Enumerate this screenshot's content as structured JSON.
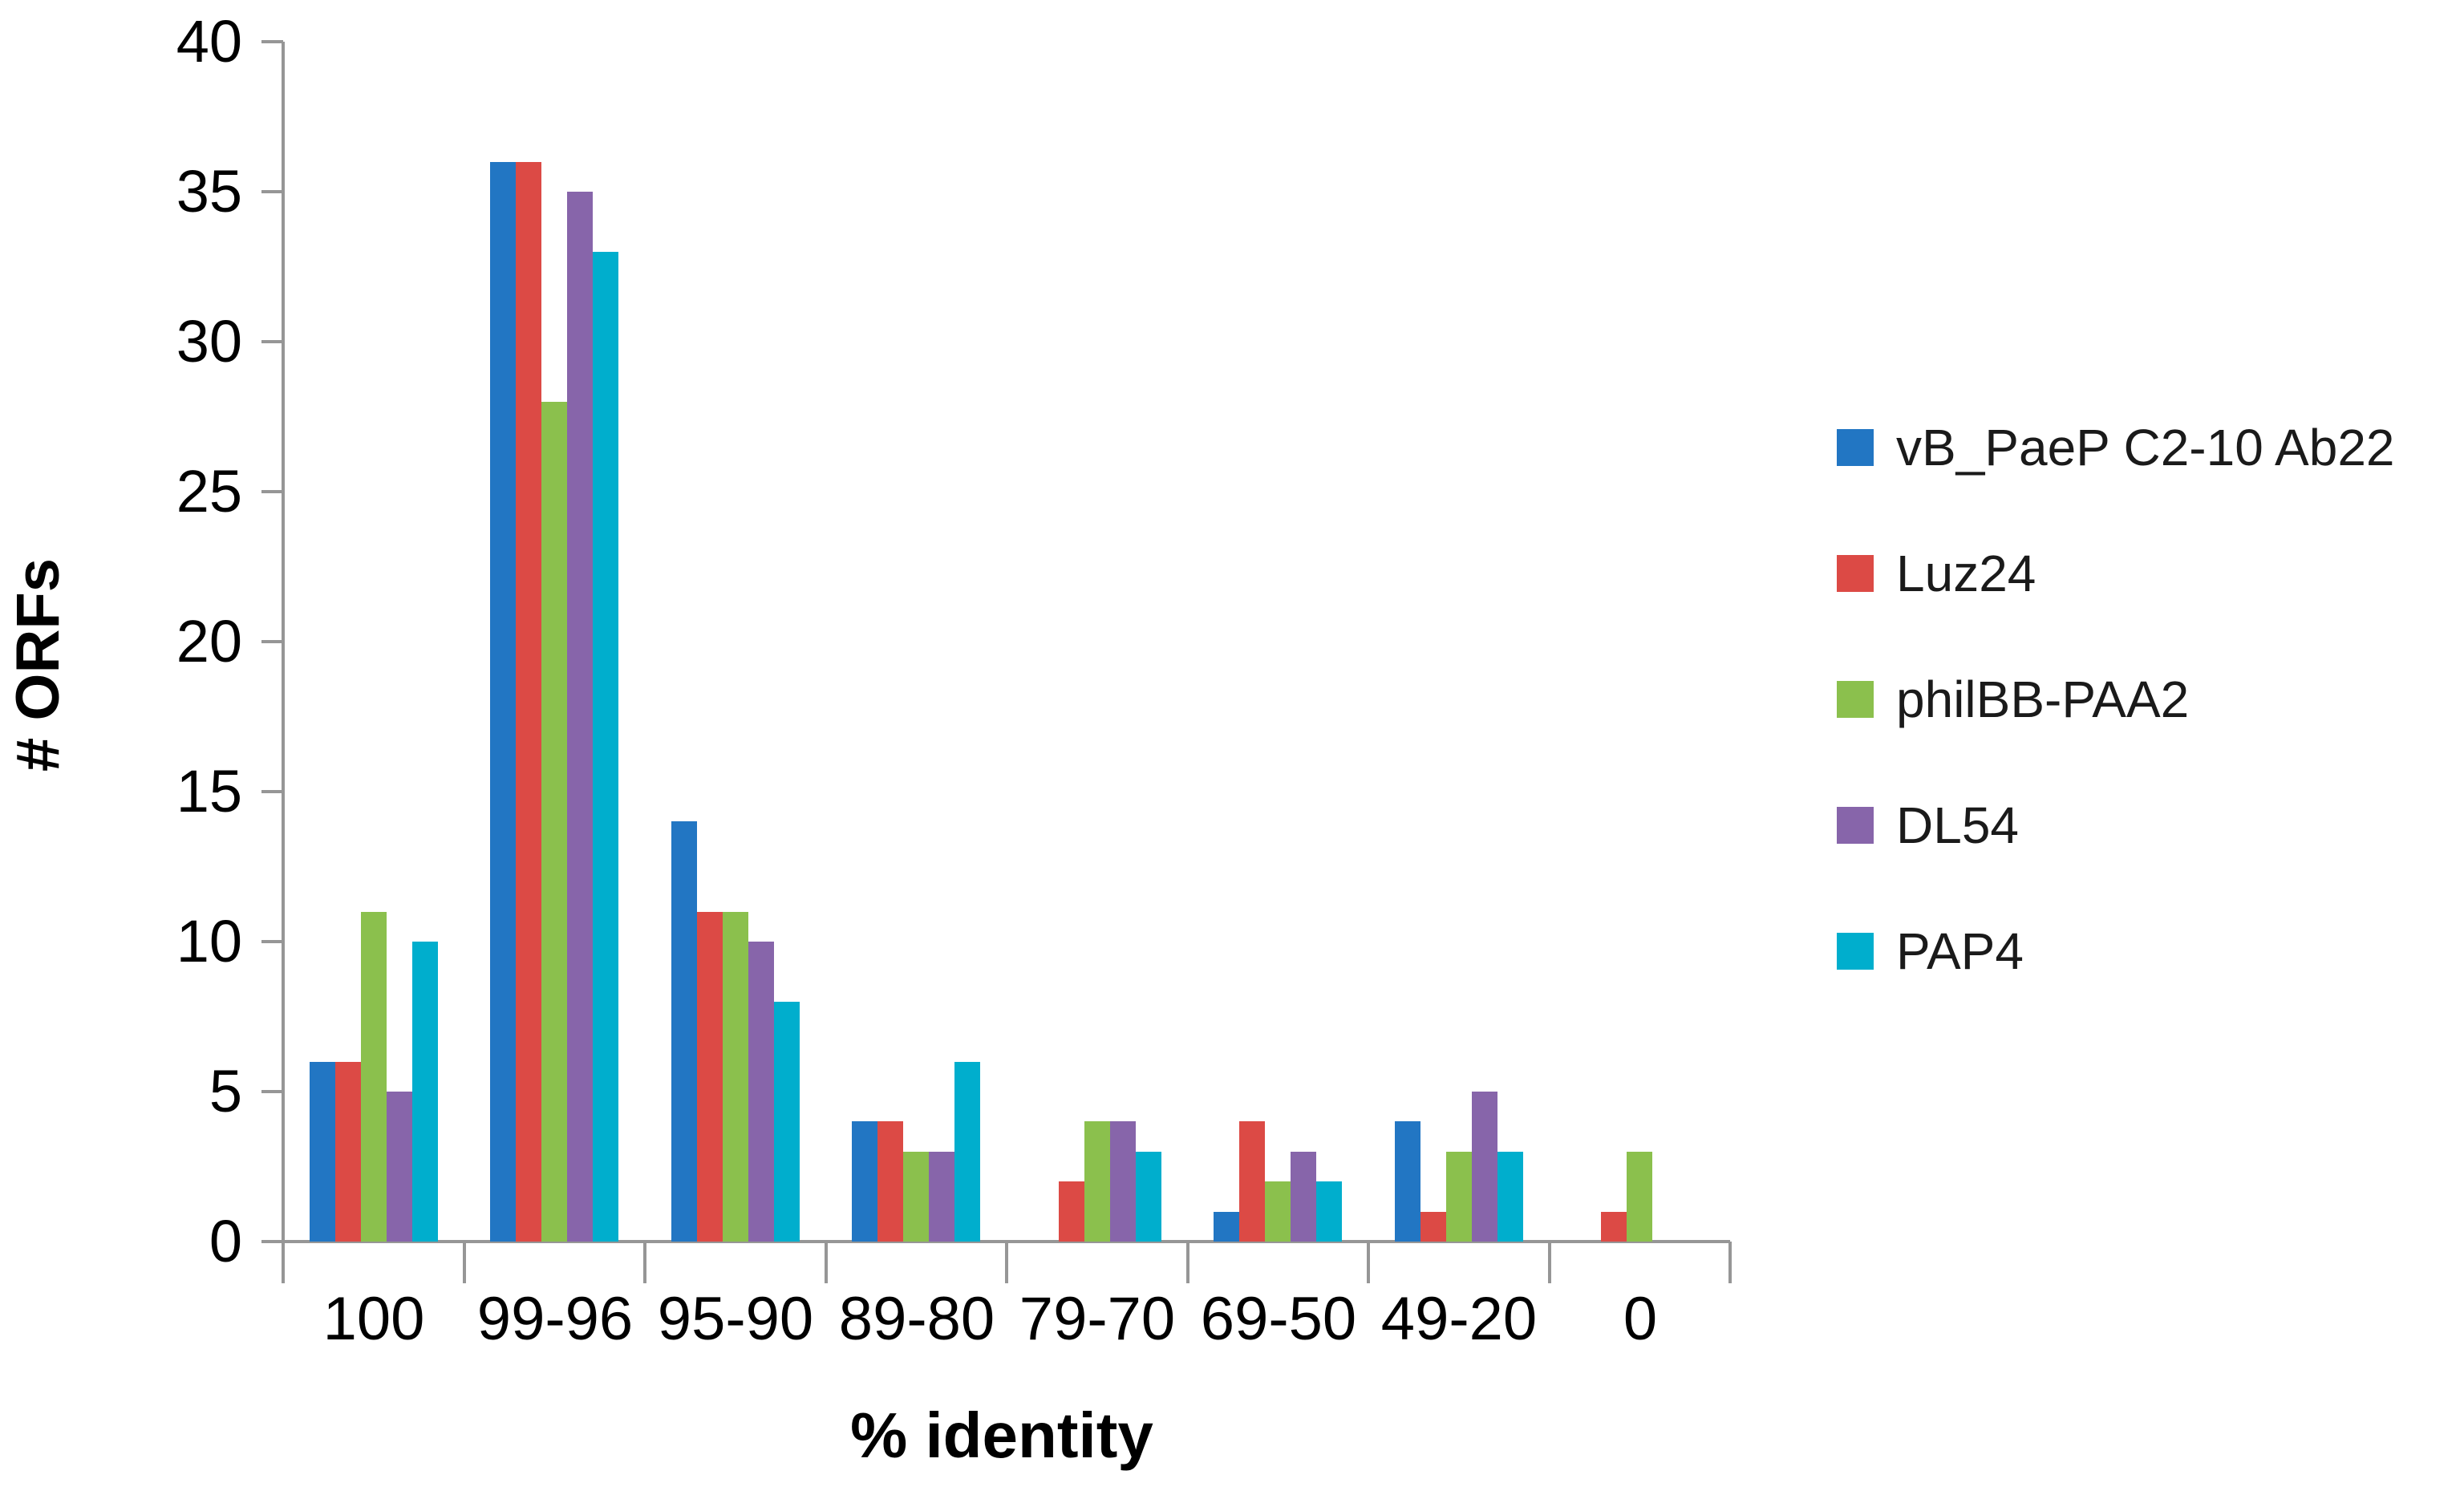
{
  "chart_data": {
    "type": "bar",
    "title": "",
    "xlabel": "% identity",
    "ylabel": "# ORFs",
    "categories": [
      "100",
      "99-96",
      "95-90",
      "89-80",
      "79-70",
      "69-50",
      "49-20",
      "0"
    ],
    "series": [
      {
        "name": "vB_PaeP C2-10 Ab22",
        "color": "#2276C3",
        "values": [
          6,
          36,
          14,
          4,
          0,
          1,
          4,
          0
        ]
      },
      {
        "name": "Luz24",
        "color": "#DC4A45",
        "values": [
          6,
          36,
          11,
          4,
          2,
          4,
          1,
          1
        ]
      },
      {
        "name": "philBB-PAA2",
        "color": "#8BC04D",
        "values": [
          11,
          28,
          11,
          3,
          4,
          2,
          3,
          3
        ]
      },
      {
        "name": "DL54",
        "color": "#8765AA",
        "values": [
          5,
          35,
          10,
          3,
          4,
          3,
          5,
          0
        ]
      },
      {
        "name": "PAP4",
        "color": "#00AECD",
        "values": [
          10,
          33,
          8,
          6,
          3,
          2,
          3,
          0
        ]
      }
    ],
    "ylim": [
      0,
      40
    ],
    "ytick_step": 5,
    "yticks": [
      0,
      5,
      10,
      15,
      20,
      25,
      30,
      35,
      40
    ],
    "grid": false,
    "legend_position": "right",
    "axis_color": "#969696",
    "text_color": "#000000"
  }
}
